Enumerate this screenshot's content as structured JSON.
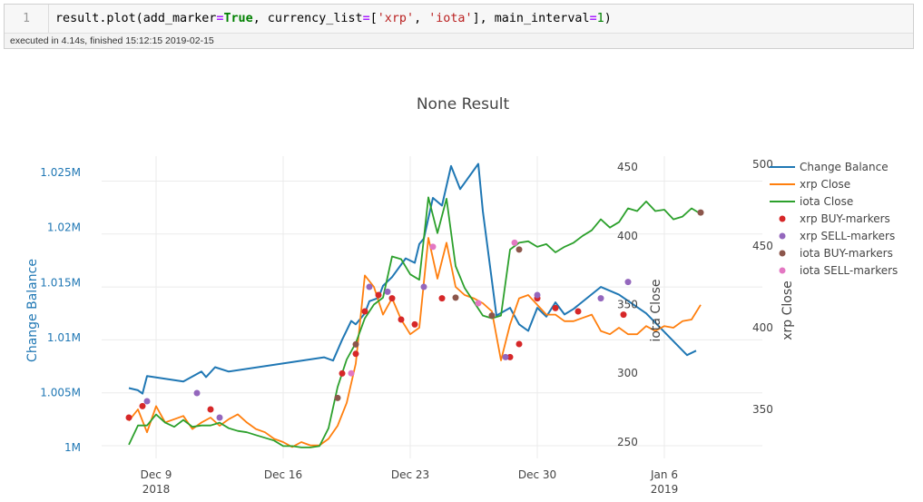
{
  "cell": {
    "line_number": "1",
    "code": {
      "fn": "result.plot(add_marker",
      "eq1": "=",
      "true_kw": "True",
      "arg2": ", currency_list",
      "eq2": "=",
      "lb": "[",
      "s1": "'xrp'",
      "comma": ", ",
      "s2": "'iota'",
      "arg3": "], main_interval",
      "eq3": "=",
      "one": "1",
      "close": ")"
    },
    "status": "executed in 4.14s, finished 15:12:15 2019-02-15"
  },
  "colors": {
    "balance": "#1f77b4",
    "xrp": "#ff7f0e",
    "iota": "#2ca02c",
    "xrp_buy": "#d62728",
    "xrp_sell": "#9467bd",
    "iota_buy": "#8c564b",
    "iota_sell": "#e377c2"
  },
  "chart_data": {
    "type": "line",
    "title": "None Result",
    "xlabel": "",
    "x_ticks": [
      {
        "label": "Dec 9",
        "sub": "2018",
        "date": "2018-12-09"
      },
      {
        "label": "Dec 16",
        "sub": "",
        "date": "2018-12-16"
      },
      {
        "label": "Dec 23",
        "sub": "",
        "date": "2018-12-23"
      },
      {
        "label": "Dec 30",
        "sub": "",
        "date": "2018-12-30"
      },
      {
        "label": "Jan 6",
        "sub": "2019",
        "date": "2019-01-06"
      }
    ],
    "axes": {
      "balance": {
        "label": "Change Balance",
        "ticks": [
          "1M",
          "1.005M",
          "1.01M",
          "1.015M",
          "1.02M",
          "1.025M"
        ],
        "range": [
          999000,
          1026500
        ]
      },
      "iota": {
        "label": "iota Close",
        "ticks": [
          "250",
          "300",
          "350",
          "400",
          "450"
        ],
        "range": [
          238,
          458
        ]
      },
      "xrp": {
        "label": "xrp Close",
        "ticks": [
          "350",
          "400",
          "450",
          "500"
        ],
        "range": [
          320,
          505
        ]
      }
    },
    "legend": [
      "Change Balance",
      "xrp Close",
      "iota Close",
      "xrp BUY-markers",
      "xrp SELL-markers",
      "iota BUY-markers",
      "iota SELL-markers"
    ],
    "grid": true,
    "legend_position": "right",
    "series": [
      {
        "name": "Change Balance",
        "axis": "balance",
        "x": [
          "2018-12-07 12:00",
          "2018-12-08 00:00",
          "2018-12-08 06:00",
          "2018-12-08 12:00",
          "2018-12-10 12:00",
          "2018-12-11 12:00",
          "2018-12-11 18:00",
          "2018-12-12 06:00",
          "2018-12-13 00:00",
          "2018-12-18 06:00",
          "2018-12-18 18:00",
          "2018-12-19 06:00",
          "2018-12-19 18:00",
          "2018-12-20 00:00",
          "2018-12-20 12:00",
          "2018-12-20 18:00",
          "2018-12-21 06:00",
          "2018-12-21 12:00",
          "2018-12-22 00:00",
          "2018-12-22 18:00",
          "2018-12-23 06:00",
          "2018-12-23 12:00",
          "2018-12-23 18:00",
          "2018-12-24 06:00",
          "2018-12-24 18:00",
          "2018-12-25 06:00",
          "2018-12-25 18:00",
          "2018-12-26 18:00",
          "2018-12-27 00:00",
          "2018-12-27 18:00",
          "2018-12-28 12:00",
          "2018-12-29 00:00",
          "2018-12-29 12:00",
          "2018-12-30 00:00",
          "2018-12-30 12:00",
          "2018-12-31 00:00",
          "2018-12-31 12:00",
          "2019-01-01 00:00",
          "2019-01-02 12:00",
          "2019-01-03 12:00",
          "2019-01-05 00:00",
          "2019-01-07 06:00",
          "2019-01-07 18:00"
        ],
        "y": [
          1005400,
          1005200,
          1004900,
          1006500,
          1006000,
          1006900,
          1006400,
          1007300,
          1006900,
          1008200,
          1007900,
          1009800,
          1011500,
          1011200,
          1012200,
          1013300,
          1013600,
          1014700,
          1015500,
          1017200,
          1016800,
          1018500,
          1019000,
          1022700,
          1022000,
          1025600,
          1023500,
          1025800,
          1021500,
          1012000,
          1012700,
          1011200,
          1010600,
          1012700,
          1011900,
          1013200,
          1012100,
          1012600,
          1014600,
          1013900,
          1012200,
          1008400,
          1008800
        ]
      },
      {
        "name": "xrp Close",
        "axis": "xrp",
        "x": [
          "2018-12-07 12:00",
          "2018-12-08 00:00",
          "2018-12-08 12:00",
          "2018-12-09 00:00",
          "2018-12-09 12:00",
          "2018-12-10 00:00",
          "2018-12-10 12:00",
          "2018-12-11 00:00",
          "2018-12-11 12:00",
          "2018-12-12 00:00",
          "2018-12-12 12:00",
          "2018-12-13 00:00",
          "2018-12-13 12:00",
          "2018-12-14 00:00",
          "2018-12-14 12:00",
          "2018-12-15 00:00",
          "2018-12-15 12:00",
          "2018-12-16 00:00",
          "2018-12-16 12:00",
          "2018-12-17 00:00",
          "2018-12-17 12:00",
          "2018-12-18 00:00",
          "2018-12-18 12:00",
          "2018-12-19 00:00",
          "2018-12-19 12:00",
          "2018-12-20 00:00",
          "2018-12-20 12:00",
          "2018-12-21 00:00",
          "2018-12-21 12:00",
          "2018-12-22 00:00",
          "2018-12-22 12:00",
          "2018-12-23 00:00",
          "2018-12-23 12:00",
          "2018-12-24 00:00",
          "2018-12-24 12:00",
          "2018-12-25 00:00",
          "2018-12-25 12:00",
          "2018-12-26 00:00",
          "2018-12-26 12:00",
          "2018-12-27 00:00",
          "2018-12-27 12:00",
          "2018-12-28 00:00",
          "2018-12-28 12:00",
          "2018-12-29 00:00",
          "2018-12-29 12:00",
          "2018-12-30 00:00",
          "2018-12-30 12:00",
          "2018-12-31 00:00",
          "2018-12-31 12:00",
          "2019-01-01 00:00",
          "2019-01-01 12:00",
          "2019-01-02 00:00",
          "2019-01-02 12:00",
          "2019-01-03 00:00",
          "2019-01-03 12:00",
          "2019-01-04 00:00",
          "2019-01-04 12:00",
          "2019-01-05 00:00",
          "2019-01-05 12:00",
          "2019-01-06 00:00",
          "2019-01-06 12:00",
          "2019-01-07 00:00",
          "2019-01-07 12:00",
          "2019-01-08 00:00"
        ],
        "y": [
          343,
          350,
          336,
          352,
          342,
          344,
          346,
          338,
          342,
          345,
          340,
          344,
          347,
          342,
          338,
          336,
          332,
          330,
          327,
          330,
          328,
          328,
          332,
          340,
          354,
          378,
          432,
          425,
          408,
          418,
          405,
          396,
          400,
          455,
          430,
          452,
          425,
          420,
          418,
          415,
          410,
          380,
          402,
          418,
          420,
          414,
          408,
          408,
          404,
          404,
          406,
          408,
          398,
          396,
          400,
          396,
          396,
          401,
          398,
          401,
          400,
          404,
          405,
          414
        ]
      },
      {
        "name": "iota Close",
        "axis": "iota",
        "x": [
          "2018-12-07 12:00",
          "2018-12-08 00:00",
          "2018-12-08 12:00",
          "2018-12-09 00:00",
          "2018-12-09 12:00",
          "2018-12-10 00:00",
          "2018-12-10 12:00",
          "2018-12-11 00:00",
          "2018-12-11 12:00",
          "2018-12-12 00:00",
          "2018-12-12 12:00",
          "2018-12-13 00:00",
          "2018-12-13 12:00",
          "2018-12-14 00:00",
          "2018-12-14 12:00",
          "2018-12-15 00:00",
          "2018-12-15 12:00",
          "2018-12-16 00:00",
          "2018-12-16 12:00",
          "2018-12-17 00:00",
          "2018-12-17 12:00",
          "2018-12-18 00:00",
          "2018-12-18 12:00",
          "2018-12-19 00:00",
          "2018-12-19 12:00",
          "2018-12-20 00:00",
          "2018-12-20 12:00",
          "2018-12-21 00:00",
          "2018-12-21 12:00",
          "2018-12-22 00:00",
          "2018-12-22 12:00",
          "2018-12-23 00:00",
          "2018-12-23 12:00",
          "2018-12-24 00:00",
          "2018-12-24 12:00",
          "2018-12-25 00:00",
          "2018-12-25 12:00",
          "2018-12-26 00:00",
          "2018-12-26 12:00",
          "2018-12-27 00:00",
          "2018-12-27 12:00",
          "2018-12-28 00:00",
          "2018-12-28 12:00",
          "2018-12-29 00:00",
          "2018-12-29 12:00",
          "2018-12-30 00:00",
          "2018-12-30 12:00",
          "2018-12-31 00:00",
          "2018-12-31 12:00",
          "2019-01-01 00:00",
          "2019-01-01 12:00",
          "2019-01-02 00:00",
          "2019-01-02 12:00",
          "2019-01-03 00:00",
          "2019-01-03 12:00",
          "2019-01-04 00:00",
          "2019-01-04 12:00",
          "2019-01-05 00:00",
          "2019-01-05 12:00",
          "2019-01-06 00:00",
          "2019-01-06 12:00",
          "2019-01-07 00:00",
          "2019-01-07 12:00",
          "2019-01-08 00:00"
        ],
        "y": [
          248,
          262,
          262,
          270,
          264,
          261,
          266,
          261,
          262,
          262,
          264,
          260,
          258,
          257,
          255,
          253,
          251,
          247,
          247,
          246,
          246,
          247,
          260,
          290,
          310,
          322,
          340,
          350,
          355,
          385,
          383,
          372,
          368,
          428,
          402,
          427,
          378,
          362,
          352,
          342,
          340,
          342,
          390,
          395,
          396,
          392,
          394,
          388,
          392,
          395,
          400,
          404,
          412,
          406,
          410,
          420,
          418,
          425,
          418,
          419,
          412,
          414,
          420,
          416
        ]
      }
    ],
    "markers": [
      {
        "name": "xrp BUY-markers",
        "axis": "xrp",
        "x": [
          "2018-12-07 12:00",
          "2018-12-08 06:00",
          "2018-12-12 00:00",
          "2018-12-19 06:00",
          "2018-12-20 00:00",
          "2018-12-20 12:00",
          "2018-12-21 06:00",
          "2018-12-22 00:00",
          "2018-12-22 12:00",
          "2018-12-23 06:00",
          "2018-12-24 18:00",
          "2018-12-28 12:00",
          "2018-12-29 00:00",
          "2018-12-30 00:00",
          "2018-12-31 00:00",
          "2019-01-01 06:00",
          "2019-01-03 18:00"
        ],
        "y": [
          345,
          352,
          350,
          372,
          384,
          410,
          420,
          418,
          405,
          402,
          418,
          382,
          390,
          418,
          412,
          410,
          408
        ]
      },
      {
        "name": "xrp SELL-markers",
        "axis": "xrp",
        "x": [
          "2018-12-08 12:00",
          "2018-12-11 06:00",
          "2018-12-12 12:00",
          "2018-12-20 18:00",
          "2018-12-21 18:00",
          "2018-12-23 18:00",
          "2018-12-28 06:00",
          "2018-12-30 00:00",
          "2019-01-02 12:00",
          "2019-01-04 00:00"
        ],
        "y": [
          355,
          360,
          345,
          425,
          422,
          425,
          382,
          420,
          418,
          428
        ]
      },
      {
        "name": "iota BUY-markers",
        "axis": "iota",
        "x": [
          "2018-12-19 00:00",
          "2018-12-20 00:00",
          "2018-12-25 12:00",
          "2018-12-27 12:00",
          "2018-12-29 00:00",
          "2019-01-08 00:00"
        ],
        "y": [
          282,
          321,
          355,
          342,
          390,
          417
        ]
      },
      {
        "name": "iota SELL-markers",
        "axis": "iota",
        "x": [
          "2018-12-19 18:00",
          "2018-12-24 06:00",
          "2018-12-26 18:00",
          "2018-12-28 18:00"
        ],
        "y": [
          300,
          392,
          351,
          395
        ]
      }
    ]
  }
}
